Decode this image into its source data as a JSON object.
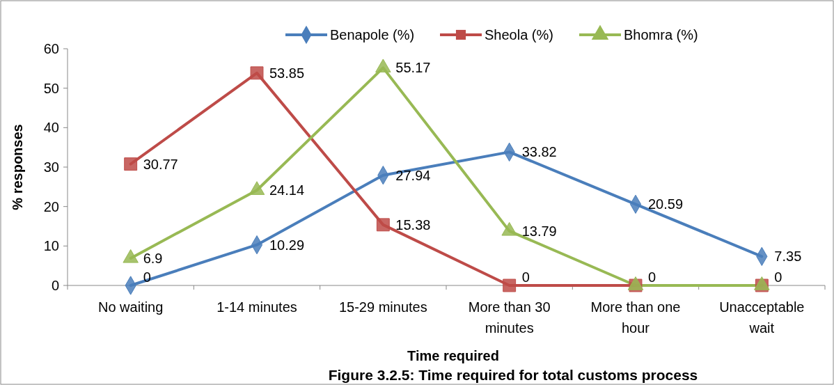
{
  "chart_data": {
    "type": "line",
    "title": "Figure 3.2.5: Time required for total customs process",
    "xlabel": "Time required",
    "ylabel": "% responses",
    "categories": [
      "No waiting",
      "1-14 minutes",
      "15-29 minutes",
      "More than 30 minutes",
      "More than one hour",
      "Unacceptable wait"
    ],
    "series": [
      {
        "name": "Benapole (%)",
        "color": "#4a7ebb",
        "marker": "diamond",
        "values": [
          0,
          10.29,
          27.94,
          33.82,
          20.59,
          7.35
        ],
        "value_labels": [
          "0",
          "10.29",
          "27.94",
          "33.82",
          "20.59",
          "7.35"
        ]
      },
      {
        "name": "Sheola (%)",
        "color": "#be4b48",
        "marker": "square",
        "values": [
          30.77,
          53.85,
          15.38,
          0,
          0,
          0
        ],
        "value_labels": [
          "30.77",
          "53.85",
          "15.38",
          "0",
          null,
          null
        ]
      },
      {
        "name": "Bhomra (%)",
        "color": "#98b954",
        "marker": "triangle",
        "values": [
          6.9,
          24.14,
          55.17,
          13.79,
          0,
          0
        ],
        "value_labels": [
          "6.9",
          "24.14",
          "55.17",
          "13.79",
          "0",
          "0"
        ]
      }
    ],
    "ylim": [
      0,
      60
    ],
    "yticks": [
      0,
      10,
      20,
      30,
      40,
      50,
      60
    ],
    "grid": false,
    "legend": "top",
    "line_style": "solid"
  }
}
